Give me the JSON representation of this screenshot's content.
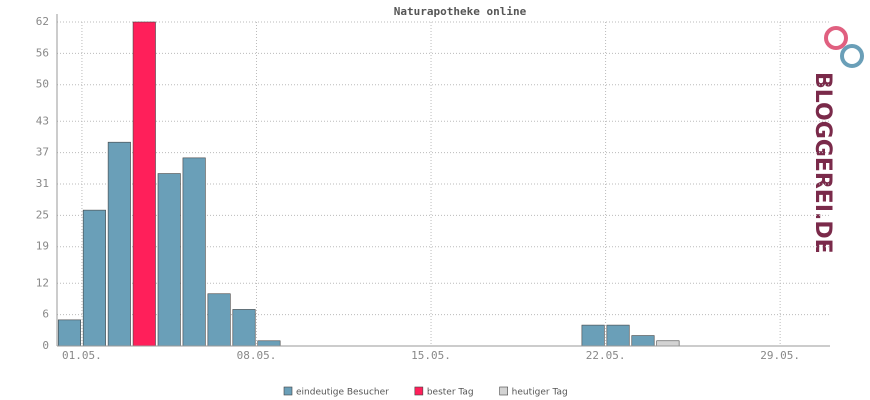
{
  "chart_data": {
    "type": "bar",
    "title": "Naturapotheke online",
    "categories": [
      null,
      "01.05.",
      null,
      null,
      null,
      null,
      null,
      null,
      "08.05.",
      null,
      null,
      null,
      null,
      null,
      null,
      "15.05.",
      null,
      null,
      null,
      null,
      null,
      null,
      "22.05.",
      null,
      null,
      null,
      null,
      null,
      null,
      "29.05.",
      null
    ],
    "series": [
      {
        "name": "eindeutige Besucher",
        "color": "#6a9fb8",
        "values": [
          5,
          26,
          39,
          null,
          33,
          36,
          10,
          7,
          1,
          0,
          0,
          0,
          0,
          0,
          0,
          0,
          0,
          0,
          0,
          0,
          0,
          4,
          4,
          2,
          null,
          0,
          0,
          0,
          0,
          0,
          0
        ]
      },
      {
        "name": "bester Tag",
        "color": "#ff1f5a",
        "values": [
          null,
          null,
          null,
          62,
          null,
          null,
          null,
          null,
          null,
          null,
          null,
          null,
          null,
          null,
          null,
          null,
          null,
          null,
          null,
          null,
          null,
          null,
          null,
          null,
          null,
          null,
          null,
          null,
          null,
          null,
          null
        ]
      },
      {
        "name": "heutiger Tag",
        "color": "#d3d3d3",
        "values": [
          null,
          null,
          null,
          null,
          null,
          null,
          null,
          null,
          null,
          null,
          null,
          null,
          null,
          null,
          null,
          null,
          null,
          null,
          null,
          null,
          null,
          null,
          null,
          null,
          1,
          null,
          null,
          null,
          null,
          null,
          null
        ]
      }
    ],
    "ylim": [
      0,
      62
    ],
    "yticks": [
      0,
      6,
      12,
      19,
      25,
      31,
      37,
      43,
      50,
      56,
      62
    ],
    "grid": true
  },
  "logo": "BLOGGEREI.DE"
}
